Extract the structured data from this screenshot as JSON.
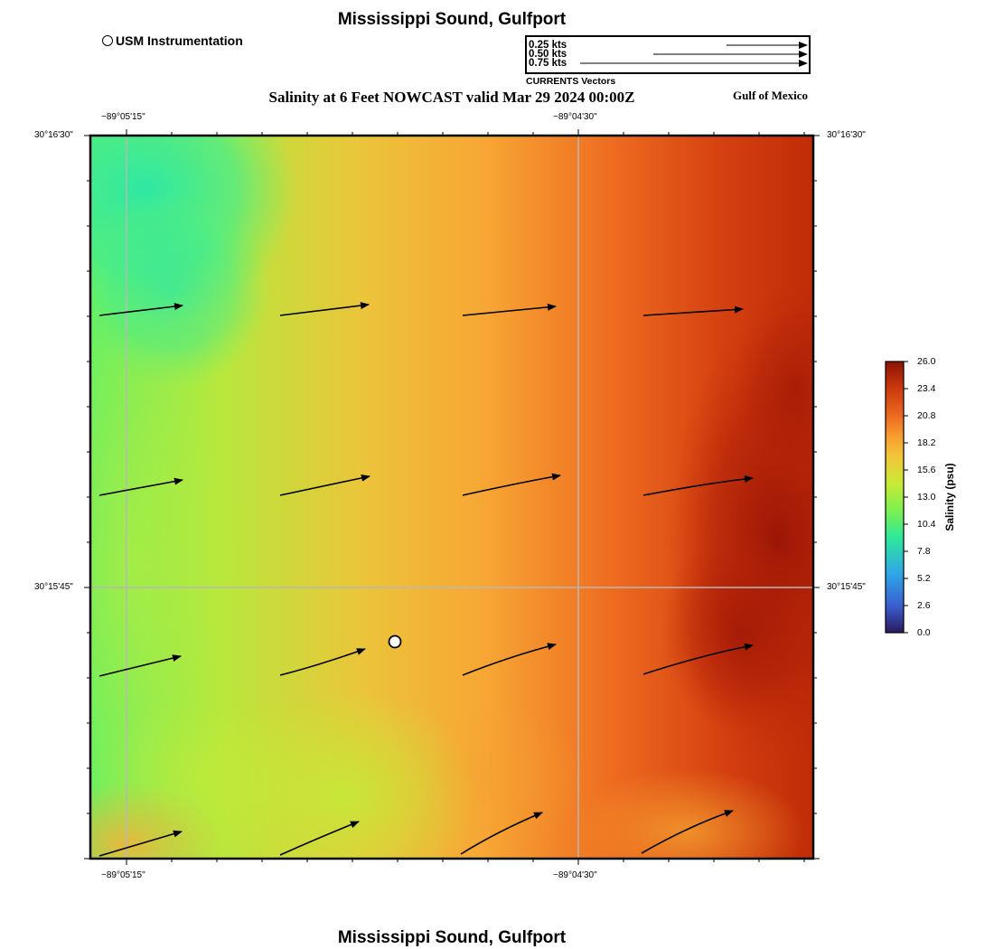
{
  "header": {
    "top_title": "Mississippi Sound, Gulfport",
    "bottom_title": "Mississippi Sound, Gulfport",
    "main_title": "Salinity at 6 Feet NOWCAST valid Mar 29 2024 00:00Z",
    "region_label": "Gulf of Mexico"
  },
  "legend": {
    "station_label": "USM Instrumentation",
    "vector_scale": [
      "0.25 kts",
      "0.50 kts",
      "0.75 kts"
    ],
    "vector_title": "CURRENTS Vectors"
  },
  "axes": {
    "lon_labels": [
      "−89°05'15\"",
      "−89°04'30\""
    ],
    "lat_labels": [
      "30°16'30\"",
      "30°15'45\""
    ]
  },
  "colorbar": {
    "title": "Salinity (psu)",
    "ticks": [
      "26.0",
      "23.4",
      "20.8",
      "18.2",
      "15.6",
      "13.0",
      "10.4",
      "7.8",
      "5.2",
      "2.6",
      "0.0"
    ],
    "colors": [
      "#2a1a5e",
      "#3a5fd0",
      "#2ea8e8",
      "#2ee89a",
      "#7cf050",
      "#c8ea35",
      "#f2c63a",
      "#f8a030",
      "#ec6a20",
      "#cc3a0c",
      "#8c1204"
    ]
  }
}
